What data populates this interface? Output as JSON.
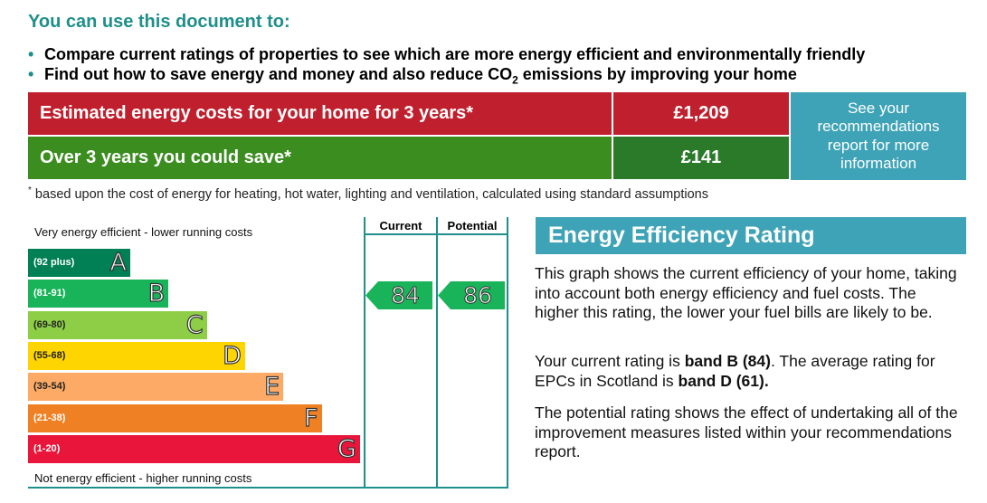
{
  "intro": {
    "heading": "You can use this document to:",
    "bullets": [
      {
        "pre": "Compare current ratings of properties to see which are more energy efficient and environmentally friendly",
        "sub": "",
        "post": ""
      },
      {
        "pre": "Find out how to save energy and money and also reduce CO",
        "sub": "2",
        "post": " emissions by improving your home"
      }
    ],
    "bullet_symbol": "•"
  },
  "costs": {
    "estimated_label": "Estimated energy costs for your home for 3 years*",
    "estimated_value": "£1,209",
    "save_label": "Over 3 years you could save*",
    "save_value": "£141",
    "recommendations_link": "See your recommendations report for more information"
  },
  "footnote": {
    "star": "*",
    "text": " based upon the cost of energy for heating, hot water, lighting and ventilation, calculated using standard assumptions"
  },
  "chart_data": {
    "type": "bar",
    "title": "Energy Efficiency Rating",
    "top_note": "Very energy efficient - lower running costs",
    "bottom_note": "Not energy efficient - higher running costs",
    "columns": [
      "Current",
      "Potential"
    ],
    "bands": [
      {
        "letter": "A",
        "range": "(92 plus)",
        "color": "#008054"
      },
      {
        "letter": "B",
        "range": "(81-91)",
        "color": "#19b459"
      },
      {
        "letter": "C",
        "range": "(69-80)",
        "color": "#8dce46"
      },
      {
        "letter": "D",
        "range": "(55-68)",
        "color": "#ffd500"
      },
      {
        "letter": "E",
        "range": "(39-54)",
        "color": "#fcaa65"
      },
      {
        "letter": "F",
        "range": "(21-38)",
        "color": "#ef8023"
      },
      {
        "letter": "G",
        "range": "(1-20)",
        "color": "#e9153b"
      }
    ],
    "current": {
      "value": 84,
      "band": "B"
    },
    "potential": {
      "value": 86,
      "band": "B"
    }
  },
  "eer": {
    "title": "Energy Efficiency Rating",
    "p1": "This graph shows the current efficiency of your home, taking into account both energy efficiency and fuel costs. The higher this rating, the lower your fuel bills are likely to be.",
    "p2_a": "Your current rating is ",
    "p2_b": "band B (84)",
    "p2_c": ". The average rating for EPCs in Scotland is ",
    "p2_d": "band D (61).",
    "p3": "The potential rating shows the effect of undertaking all of the improvement measures listed within your recommendations report."
  },
  "colors": {
    "accent": "#1e8f8a",
    "estimated_bg": "#c0202e",
    "save_bg": "#3a8d1e",
    "save_value_bg": "#2a7a2a",
    "info_bg": "#3ea3b7"
  }
}
